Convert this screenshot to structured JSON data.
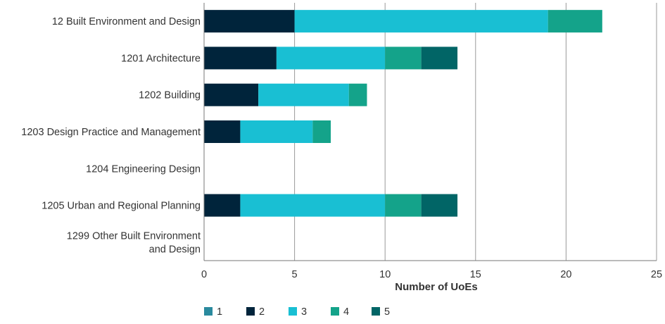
{
  "chart_data": {
    "type": "bar",
    "orientation": "horizontal",
    "stacked": true,
    "title": "",
    "xlabel": "Number of UoEs",
    "ylabel": "",
    "xlim": [
      0,
      25
    ],
    "xticks": [
      0,
      5,
      10,
      15,
      20,
      25
    ],
    "grid": true,
    "legend_position": "bottom-left",
    "categories": [
      [
        "12 Built Environment and Design"
      ],
      [
        "1201 Architecture"
      ],
      [
        "1202 Building"
      ],
      [
        "1203 Design Practice and Management"
      ],
      [
        "1204 Engineering Design"
      ],
      [
        "1205 Urban and Regional Planning"
      ],
      [
        "1299 Other Built Environment",
        "and Design"
      ]
    ],
    "series": [
      {
        "name": "1",
        "color": "#2a8a9e",
        "values": [
          0,
          0,
          0,
          0,
          0,
          0,
          0
        ]
      },
      {
        "name": "2",
        "color": "#00243b",
        "values": [
          5,
          4,
          3,
          2,
          0,
          2,
          0
        ]
      },
      {
        "name": "3",
        "color": "#19bfd3",
        "values": [
          14,
          6,
          5,
          4,
          0,
          8,
          0
        ]
      },
      {
        "name": "4",
        "color": "#14a38a",
        "values": [
          3,
          2,
          1,
          1,
          0,
          2,
          0
        ]
      },
      {
        "name": "5",
        "color": "#016566",
        "values": [
          0,
          2,
          0,
          0,
          0,
          2,
          0
        ]
      }
    ]
  }
}
